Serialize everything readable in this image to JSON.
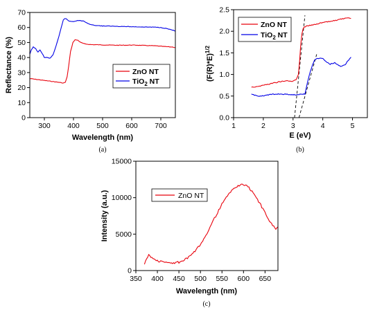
{
  "chart_data": [
    {
      "type": "line",
      "panel_label": "(a)",
      "xlabel": "Wavelength (nm)",
      "ylabel": "Reflectance (%)",
      "xlim": [
        250,
        750
      ],
      "ylim": [
        0,
        70
      ],
      "xticks": [
        300,
        400,
        500,
        600,
        700
      ],
      "yticks": [
        0,
        10,
        20,
        30,
        40,
        50,
        60,
        70
      ],
      "legend": "center-right",
      "grid": false,
      "series": [
        {
          "name": "ZnO NT",
          "color": "#e8000b",
          "x": [
            250,
            270,
            290,
            310,
            330,
            350,
            365,
            372,
            378,
            384,
            390,
            398,
            405,
            415,
            425,
            440,
            460,
            480,
            500,
            520,
            550,
            580,
            600,
            620,
            650,
            680,
            700,
            720,
            740,
            750
          ],
          "y": [
            26,
            25.5,
            25,
            24.5,
            24,
            23.5,
            23,
            23.5,
            27,
            35,
            44,
            50,
            51.8,
            51.5,
            50,
            49,
            48.6,
            48.5,
            48.4,
            48.3,
            48.2,
            48.2,
            48.3,
            48.2,
            48,
            47.8,
            47.5,
            47.2,
            47,
            46.6
          ]
        },
        {
          "name": "TiO2 NT",
          "color": "#0000e6",
          "x": [
            250,
            255,
            262,
            270,
            278,
            285,
            292,
            300,
            310,
            320,
            330,
            340,
            350,
            358,
            365,
            370,
            375,
            385,
            400,
            410,
            420,
            435,
            450,
            470,
            500,
            550,
            600,
            650,
            680,
            700,
            720,
            740,
            750
          ],
          "y": [
            42,
            45,
            47,
            46,
            43.5,
            45,
            43,
            40,
            40,
            39.5,
            42,
            47.5,
            54,
            60,
            65,
            66,
            65.7,
            64.2,
            64,
            64.5,
            64.6,
            64.3,
            62.5,
            61.5,
            61,
            60.8,
            60.5,
            60.3,
            60.2,
            60,
            59.3,
            58.3,
            57.5
          ]
        }
      ]
    },
    {
      "type": "line",
      "panel_label": "(b)",
      "xlabel": "E (eV)",
      "ylabel": "(F(R)*E)^1/2",
      "ylabel_parts": {
        "base": "(F(R)*E)",
        "exponent": "1/2"
      },
      "xlim": [
        1,
        5.5
      ],
      "ylim": [
        0,
        2.5
      ],
      "xticks": [
        1,
        2,
        3,
        4,
        5
      ],
      "yticks": [
        0.0,
        0.5,
        1.0,
        1.5,
        2.0,
        2.5
      ],
      "ytick_labels": [
        "0.0",
        "0.5",
        "1.0",
        "1.5",
        "2.0",
        "2.5"
      ],
      "legend": "top-left",
      "grid": false,
      "series": [
        {
          "name": "ZnO NT",
          "color": "#e8000b",
          "x": [
            1.6,
            1.8,
            2.0,
            2.2,
            2.4,
            2.6,
            2.8,
            3.0,
            3.1,
            3.18,
            3.22,
            3.26,
            3.3,
            3.34,
            3.38,
            3.45,
            3.6,
            3.8,
            4.0,
            4.2,
            4.4,
            4.6,
            4.8,
            4.95
          ],
          "y": [
            0.71,
            0.72,
            0.75,
            0.78,
            0.81,
            0.84,
            0.85,
            0.84,
            0.88,
            1.0,
            1.3,
            1.7,
            1.95,
            2.07,
            2.1,
            2.12,
            2.14,
            2.17,
            2.2,
            2.22,
            2.25,
            2.28,
            2.3,
            2.3
          ]
        },
        {
          "name": "TiO2 NT",
          "color": "#0000e6",
          "x": [
            1.6,
            1.8,
            2.0,
            2.2,
            2.5,
            2.8,
            3.0,
            3.2,
            3.4,
            3.45,
            3.55,
            3.65,
            3.72,
            3.8,
            3.9,
            4.0,
            4.1,
            4.25,
            4.4,
            4.6,
            4.75,
            4.9,
            4.95
          ],
          "y": [
            0.54,
            0.5,
            0.51,
            0.53,
            0.55,
            0.54,
            0.53,
            0.54,
            0.55,
            0.7,
            1.0,
            1.22,
            1.33,
            1.37,
            1.37,
            1.38,
            1.3,
            1.24,
            1.27,
            1.18,
            1.22,
            1.37,
            1.4
          ]
        }
      ],
      "tangent_lines": [
        {
          "style": "dashed",
          "x": [
            3.05,
            3.4
          ],
          "y": [
            0.0,
            2.37
          ]
        },
        {
          "style": "dashed",
          "x": [
            3.2,
            3.8
          ],
          "y": [
            0.0,
            1.48
          ]
        }
      ]
    },
    {
      "type": "line",
      "panel_label": "(c)",
      "xlabel": "Wavelength (nm)",
      "ylabel": "Intensity (a.u.)",
      "xlim": [
        350,
        680
      ],
      "ylim": [
        0,
        15000
      ],
      "xticks": [
        350,
        400,
        450,
        500,
        550,
        600,
        650
      ],
      "yticks": [
        0,
        5000,
        10000,
        15000
      ],
      "legend": "top-left",
      "grid": false,
      "series": [
        {
          "name": "ZnO NT",
          "color": "#e8000b",
          "x": [
            370,
            375,
            380,
            385,
            390,
            400,
            410,
            420,
            430,
            440,
            450,
            460,
            470,
            480,
            490,
            500,
            510,
            520,
            530,
            540,
            550,
            560,
            570,
            580,
            590,
            600,
            610,
            620,
            630,
            640,
            650,
            660,
            670,
            675,
            680
          ],
          "y": [
            1000,
            1600,
            2100,
            1900,
            1600,
            1350,
            1200,
            1100,
            1050,
            1050,
            1150,
            1350,
            1700,
            2200,
            2800,
            3600,
            4600,
            5700,
            6900,
            8000,
            9100,
            10000,
            10800,
            11400,
            11700,
            11800,
            11500,
            10900,
            10000,
            9000,
            7900,
            6900,
            6000,
            5600,
            6000
          ]
        }
      ]
    }
  ]
}
